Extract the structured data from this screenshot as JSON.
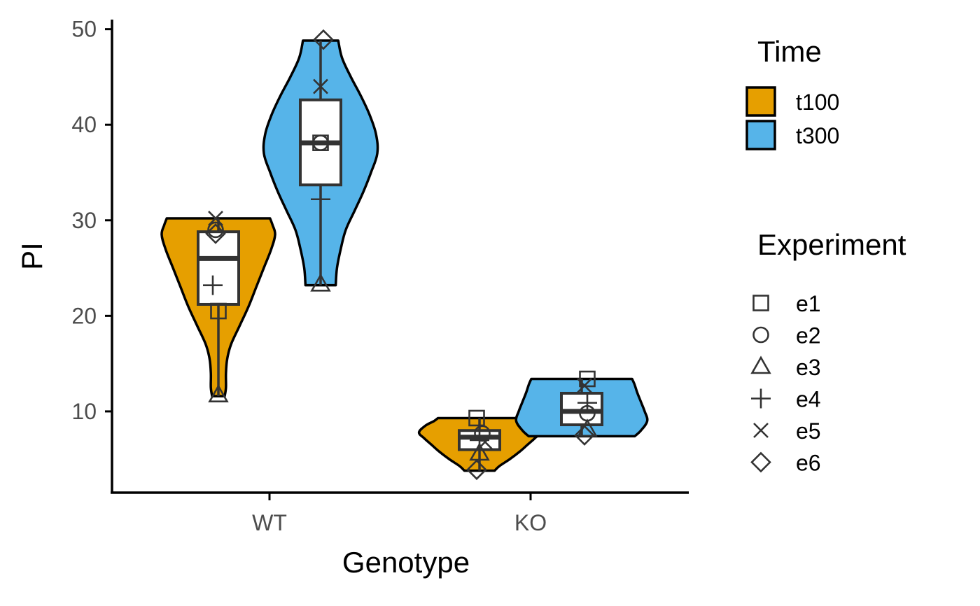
{
  "chart_data": {
    "type": "violin",
    "title": "",
    "xlabel": "Genotype",
    "ylabel": "PI",
    "ylim": [
      1.5,
      51
    ],
    "yticks": [
      10,
      20,
      30,
      40,
      50
    ],
    "categories": [
      "WT",
      "KO"
    ],
    "series": [
      {
        "name": "t100",
        "color": "#E69F00",
        "groups": [
          {
            "category": "WT",
            "min": 11.6,
            "max": 30.2,
            "box": {
              "q1": 21.2,
              "median": 26.0,
              "q3": 28.8,
              "whisker_low": 11.6,
              "whisker_high": 30.2
            },
            "density": [
              [
                11.6,
                0.05
              ],
              [
                12.5,
                0.06
              ],
              [
                14,
                0.06
              ],
              [
                15.5,
                0.07
              ],
              [
                17,
                0.1
              ],
              [
                19,
                0.17
              ],
              [
                21,
                0.24
              ],
              [
                23,
                0.3
              ],
              [
                25,
                0.36
              ],
              [
                27,
                0.42
              ],
              [
                28.5,
                0.45
              ],
              [
                29.5,
                0.43
              ],
              [
                30.2,
                0.41
              ]
            ],
            "points": [
              {
                "experiment": "e1",
                "value": 20.5,
                "offset": 0.0
              },
              {
                "experiment": "e2",
                "value": 29.0,
                "offset": -0.01
              },
              {
                "experiment": "e3",
                "value": 11.7,
                "offset": 0.0
              },
              {
                "experiment": "e4",
                "value": 23.2,
                "offset": -0.02
              },
              {
                "experiment": "e5",
                "value": 30.2,
                "offset": -0.01
              },
              {
                "experiment": "e6",
                "value": 28.6,
                "offset": -0.01
              }
            ]
          },
          {
            "category": "KO",
            "min": 3.8,
            "max": 9.3,
            "box": {
              "q1": 6.0,
              "median": 7.3,
              "q3": 8.0,
              "whisker_low": 3.8,
              "whisker_high": 9.3
            },
            "density": [
              [
                3.8,
                0.12
              ],
              [
                4.3,
                0.16
              ],
              [
                5,
                0.24
              ],
              [
                5.8,
                0.32
              ],
              [
                6.5,
                0.38
              ],
              [
                7.2,
                0.44
              ],
              [
                7.8,
                0.48
              ],
              [
                8.5,
                0.43
              ],
              [
                9,
                0.36
              ],
              [
                9.3,
                0.33
              ]
            ],
            "points": [
              {
                "experiment": "e1",
                "value": 9.3,
                "offset": -0.01
              },
              {
                "experiment": "e2",
                "value": 7.7,
                "offset": 0.01
              },
              {
                "experiment": "e3",
                "value": 5.6,
                "offset": 0.0
              },
              {
                "experiment": "e4",
                "value": 7.0,
                "offset": 0.0
              },
              {
                "experiment": "e5",
                "value": 6.8,
                "offset": 0.02
              },
              {
                "experiment": "e6",
                "value": 3.9,
                "offset": -0.01
              }
            ]
          }
        ]
      },
      {
        "name": "t300",
        "color": "#56B4E9",
        "groups": [
          {
            "category": "WT",
            "min": 23.2,
            "max": 48.8,
            "box": {
              "q1": 33.7,
              "median": 38.1,
              "q3": 42.6,
              "whisker_low": 23.2,
              "whisker_high": 48.8
            },
            "density": [
              [
                23.2,
                0.12
              ],
              [
                25,
                0.13
              ],
              [
                27,
                0.16
              ],
              [
                29,
                0.2
              ],
              [
                31,
                0.27
              ],
              [
                33,
                0.34
              ],
              [
                35,
                0.4
              ],
              [
                37,
                0.45
              ],
              [
                39,
                0.44
              ],
              [
                41,
                0.39
              ],
              [
                43,
                0.32
              ],
              [
                45,
                0.24
              ],
              [
                47,
                0.17
              ],
              [
                48.8,
                0.14
              ]
            ],
            "points": [
              {
                "experiment": "e1",
                "value": 38.1,
                "offset": 0.0
              },
              {
                "experiment": "e2",
                "value": 38.1,
                "offset": 0.0
              },
              {
                "experiment": "e3",
                "value": 23.3,
                "offset": 0.0
              },
              {
                "experiment": "e4",
                "value": 32.2,
                "offset": 0.0
              },
              {
                "experiment": "e5",
                "value": 44.0,
                "offset": 0.0
              },
              {
                "experiment": "e6",
                "value": 48.9,
                "offset": 0.01
              }
            ]
          },
          {
            "category": "KO",
            "min": 7.4,
            "max": 13.4,
            "box": {
              "q1": 8.6,
              "median": 10.0,
              "q3": 11.9,
              "whisker_low": 7.4,
              "whisker_high": 13.4
            },
            "density": [
              [
                7.4,
                0.42
              ],
              [
                8,
                0.47
              ],
              [
                9,
                0.52
              ],
              [
                10,
                0.5
              ],
              [
                11,
                0.47
              ],
              [
                12,
                0.44
              ],
              [
                12.8,
                0.42
              ],
              [
                13.4,
                0.4
              ]
            ],
            "points": [
              {
                "experiment": "e1",
                "value": 13.4,
                "offset": 0.02
              },
              {
                "experiment": "e2",
                "value": 9.8,
                "offset": 0.02
              },
              {
                "experiment": "e3",
                "value": 8.1,
                "offset": 0.02
              },
              {
                "experiment": "e4",
                "value": 10.9,
                "offset": 0.02
              },
              {
                "experiment": "e5",
                "value": 12.7,
                "offset": 0.01
              },
              {
                "experiment": "e6",
                "value": 7.5,
                "offset": 0.01
              }
            ]
          }
        ]
      }
    ],
    "legends": {
      "fill": {
        "title": "Time",
        "entries": [
          "t100",
          "t300"
        ]
      },
      "shape": {
        "title": "Experiment",
        "entries": [
          {
            "label": "e1",
            "shape": "square"
          },
          {
            "label": "e2",
            "shape": "circle"
          },
          {
            "label": "e3",
            "shape": "triangle"
          },
          {
            "label": "e4",
            "shape": "plus"
          },
          {
            "label": "e5",
            "shape": "cross"
          },
          {
            "label": "e6",
            "shape": "diamond"
          }
        ]
      }
    },
    "grid": false,
    "legend_position": "right"
  }
}
